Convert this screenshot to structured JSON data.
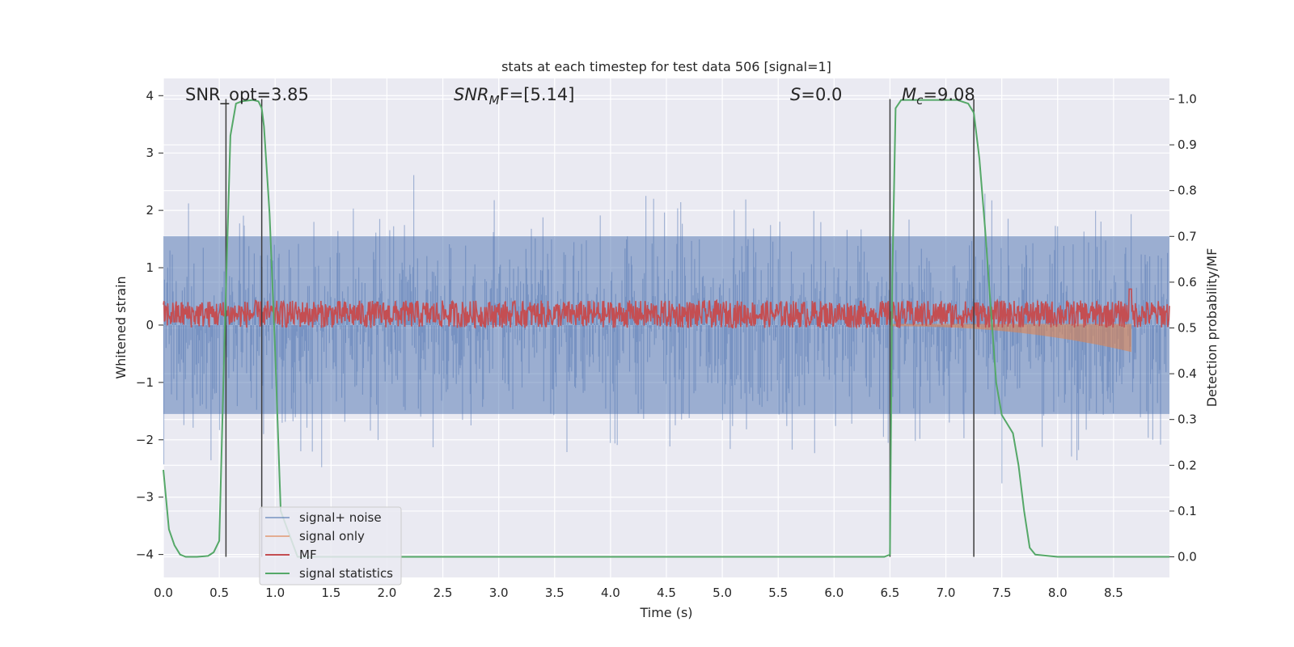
{
  "chart_data": {
    "type": "line",
    "title": "stats at each timestep for test data 506 [signal=1]",
    "xlabel": "Time (s)",
    "ylabel": "Whitened strain",
    "y2label": "Detection probability/MF",
    "xlim": [
      0.0,
      9.0
    ],
    "ylim": [
      -4.4,
      4.3
    ],
    "y2lim": [
      -0.045,
      1.045
    ],
    "xticks": [
      "0.0",
      "0.5",
      "1.0",
      "1.5",
      "2.0",
      "2.5",
      "3.0",
      "3.5",
      "4.0",
      "4.5",
      "5.0",
      "5.5",
      "6.0",
      "6.5",
      "7.0",
      "7.5",
      "8.0",
      "8.5"
    ],
    "yticks": [
      "4",
      "3",
      "2",
      "1",
      "0",
      "−1",
      "−2",
      "−3",
      "−4"
    ],
    "y2ticks": [
      "1.0",
      "0.9",
      "0.8",
      "0.7",
      "0.6",
      "0.5",
      "0.4",
      "0.3",
      "0.2",
      "0.1",
      "0.0"
    ],
    "grid": true,
    "legend_position": "lower-left",
    "annotations": {
      "snr_opt": "SNR_opt=3.85",
      "snr_mf_main": "SNR",
      "snr_mf_sub": "M",
      "snr_mf_tail": "F=[5.14]",
      "s_main": "S",
      "s_tail": "=0.0",
      "mc_main": "M",
      "mc_sub": "c",
      "mc_tail": "=9.08"
    },
    "vertical_markers_s": [
      0.56,
      0.88,
      6.5,
      7.25
    ],
    "series": [
      {
        "name": "signal+ noise",
        "color": "#4c72b0",
        "axis": "left",
        "envelope_rms": 1.55,
        "peak_max": 3.6,
        "peak_min": -4.0,
        "t_range": [
          0.0,
          9.0
        ]
      },
      {
        "name": "signal only",
        "color": "#dd8452",
        "axis": "left",
        "t_range": [
          6.5,
          8.66
        ],
        "amplitude_end": 0.45
      },
      {
        "name": "MF",
        "color": "#c44e52",
        "axis": "right",
        "baseline": 0.53,
        "spread": 0.03,
        "peak": 0.585,
        "peak_t": 8.65
      },
      {
        "name": "signal statistics",
        "color": "#55a868",
        "axis": "right",
        "x": [
          0.0,
          0.05,
          0.1,
          0.15,
          0.2,
          0.3,
          0.4,
          0.45,
          0.5,
          0.55,
          0.6,
          0.65,
          0.7,
          0.8,
          0.85,
          0.88,
          0.9,
          0.95,
          1.0,
          1.05,
          1.2,
          2.0,
          3.0,
          4.0,
          5.0,
          6.0,
          6.45,
          6.5,
          6.52,
          6.55,
          6.6,
          6.7,
          6.8,
          7.0,
          7.1,
          7.2,
          7.25,
          7.3,
          7.35,
          7.4,
          7.45,
          7.5,
          7.55,
          7.6,
          7.65,
          7.7,
          7.75,
          7.8,
          8.0,
          8.5,
          9.0
        ],
        "y": [
          0.19,
          0.06,
          0.025,
          0.005,
          0.0,
          0.0,
          0.002,
          0.01,
          0.035,
          0.5,
          0.92,
          0.99,
          0.995,
          0.998,
          0.995,
          0.98,
          0.94,
          0.75,
          0.45,
          0.1,
          0.0,
          0.0,
          0.0,
          0.0,
          0.0,
          0.0,
          0.0,
          0.005,
          0.6,
          0.98,
          0.998,
          0.998,
          0.998,
          0.998,
          0.998,
          0.99,
          0.97,
          0.87,
          0.72,
          0.55,
          0.38,
          0.31,
          0.29,
          0.27,
          0.2,
          0.1,
          0.02,
          0.005,
          0.0,
          0.0,
          0.0
        ]
      }
    ]
  }
}
